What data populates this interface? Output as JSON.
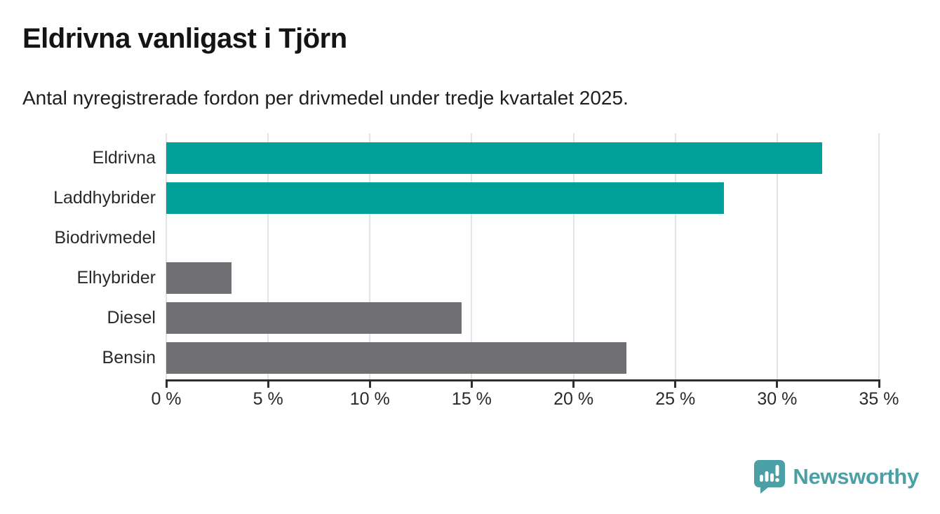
{
  "title": "Eldrivna vanligast i Tjörn",
  "subtitle": "Antal nyregistrerade fordon per drivmedel under tredje kvartalet 2025.",
  "chart_data": {
    "type": "bar",
    "orientation": "horizontal",
    "title": "Eldrivna vanligast i Tjörn",
    "subtitle": "Antal nyregistrerade fordon per drivmedel under tredje kvartalet 2025.",
    "categories": [
      "Eldrivna",
      "Laddhybrider",
      "Biodrivmedel",
      "Elhybrider",
      "Diesel",
      "Bensin"
    ],
    "values": [
      32.2,
      27.4,
      0,
      3.2,
      14.5,
      22.6
    ],
    "unit": "%",
    "xlim": [
      0,
      35
    ],
    "x_ticks": [
      0,
      5,
      10,
      15,
      20,
      25,
      30,
      35
    ],
    "x_tick_labels": [
      "0 %",
      "5 %",
      "10 %",
      "15 %",
      "20 %",
      "25 %",
      "30 %",
      "35 %"
    ],
    "grid": true,
    "legend": false,
    "bar_colors": [
      "#00A099",
      "#00A099",
      "#6E6E73",
      "#6E6E73",
      "#6E6E73",
      "#6E6E73"
    ]
  },
  "colors": {
    "accent_teal": "#00A099",
    "bar_gray": "#6E6E73",
    "gridline": "#E4E4E4",
    "axis": "#2E2E2E",
    "title_text": "#141414",
    "body_text": "#2A2A2A",
    "logo_teal": "#4BA0A5"
  },
  "branding": {
    "wordmark": "Newsworthy",
    "icon": "newsworthy-speech-bubble-bar-chart-icon"
  }
}
